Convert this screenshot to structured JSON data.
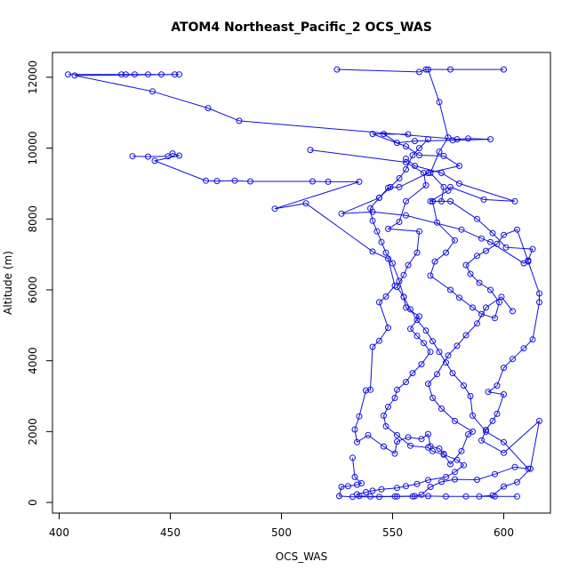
{
  "chart_data": {
    "type": "line",
    "title": "ATOM4 Northeast_Pacific_2 OCS_WAS",
    "xlabel": "OCS_WAS",
    "ylabel": "Altitude (m)",
    "xlim": [
      397,
      621
    ],
    "ylim": [
      -300,
      12700
    ],
    "xticks": [
      400,
      450,
      500,
      550,
      600
    ],
    "yticks": [
      0,
      2000,
      4000,
      6000,
      8000,
      10000,
      12000
    ],
    "grid": false,
    "legend": "none",
    "line_color": "#1010e0",
    "marker": "open-circle",
    "series": [
      {
        "points": [
          [
            404,
            12080
          ],
          [
            428,
            12080
          ],
          [
            430,
            12080
          ],
          [
            434,
            12080
          ],
          [
            440,
            12080
          ],
          [
            446,
            12080
          ],
          [
            452,
            12080
          ],
          [
            454,
            12080
          ],
          [
            407,
            12050
          ],
          [
            442,
            11600
          ],
          [
            467,
            11130
          ],
          [
            481,
            10770
          ],
          [
            579,
            10250
          ],
          [
            584,
            10270
          ],
          [
            594,
            10250
          ],
          [
            577,
            10220
          ],
          [
            560,
            10200
          ],
          [
            552,
            10150
          ],
          [
            546,
            10400
          ],
          [
            557,
            10390
          ],
          [
            541,
            10400
          ],
          [
            556,
            10050
          ],
          [
            562,
            9800
          ],
          [
            573,
            9780
          ],
          [
            580,
            9500
          ],
          [
            566,
            9300
          ],
          [
            553,
            8900
          ],
          [
            548,
            8880
          ],
          [
            544,
            8600
          ],
          [
            527,
            8150
          ],
          [
            541,
            8200
          ],
          [
            556,
            8100
          ],
          [
            581,
            7700
          ],
          [
            590,
            7450
          ],
          [
            594,
            7350
          ],
          [
            609,
            6750
          ],
          [
            611,
            6830
          ],
          [
            613,
            7150
          ],
          [
            601,
            7200
          ],
          [
            595,
            7600
          ],
          [
            588,
            8000
          ],
          [
            576,
            8500
          ],
          [
            567,
            8500
          ],
          [
            575,
            8800
          ],
          [
            576,
            8900
          ],
          [
            591,
            8550
          ],
          [
            605,
            8500
          ],
          [
            580,
            9000
          ],
          [
            572,
            9300
          ],
          [
            560,
            9500
          ],
          [
            556,
            9700
          ]
        ]
      },
      {
        "points": [
          [
            433,
            9770
          ],
          [
            440,
            9760
          ],
          [
            449,
            9770
          ],
          [
            451,
            9850
          ],
          [
            454,
            9790
          ],
          [
            443,
            9640
          ],
          [
            466,
            9080
          ],
          [
            471,
            9070
          ],
          [
            479,
            9080
          ],
          [
            486,
            9060
          ],
          [
            514,
            9060
          ],
          [
            521,
            9050
          ],
          [
            535,
            9050
          ],
          [
            497,
            8290
          ],
          [
            511,
            8440
          ],
          [
            541,
            7080
          ],
          [
            548,
            6880
          ],
          [
            551,
            6120
          ],
          [
            547,
            5810
          ],
          [
            544,
            5650
          ],
          [
            548,
            4930
          ],
          [
            544,
            4560
          ],
          [
            541,
            4390
          ],
          [
            540,
            3180
          ],
          [
            538,
            3160
          ],
          [
            535,
            2430
          ],
          [
            533,
            2060
          ],
          [
            534,
            1700
          ],
          [
            539,
            1900
          ],
          [
            546,
            1580
          ],
          [
            551,
            1380
          ],
          [
            552,
            1720
          ],
          [
            557,
            1840
          ],
          [
            563,
            1790
          ],
          [
            566,
            1930
          ],
          [
            567,
            1590
          ],
          [
            571,
            1520
          ],
          [
            573,
            1370
          ],
          [
            576,
            1080
          ],
          [
            581,
            1450
          ],
          [
            584,
            1920
          ],
          [
            586,
            2000
          ],
          [
            578,
            2300
          ],
          [
            572,
            2650
          ],
          [
            568,
            2950
          ],
          [
            566,
            3350
          ],
          [
            570,
            3620
          ],
          [
            575,
            4150
          ],
          [
            579,
            4420
          ],
          [
            583,
            4720
          ],
          [
            588,
            5050
          ],
          [
            592,
            5500
          ],
          [
            599,
            5800
          ],
          [
            604,
            5400
          ]
        ]
      },
      {
        "points": [
          [
            525,
            12220
          ],
          [
            562,
            12150
          ],
          [
            565,
            12220
          ],
          [
            576,
            12220
          ],
          [
            600,
            12220
          ],
          [
            566,
            12220
          ],
          [
            571,
            11300
          ],
          [
            575,
            10300
          ],
          [
            571,
            9900
          ],
          [
            567,
            9300
          ],
          [
            573,
            8900
          ],
          [
            572,
            8500
          ],
          [
            568,
            8500
          ],
          [
            570,
            7900
          ],
          [
            578,
            7400
          ],
          [
            574,
            7050
          ],
          [
            569,
            6800
          ],
          [
            567,
            6400
          ],
          [
            576,
            6000
          ],
          [
            580,
            5780
          ],
          [
            586,
            5500
          ],
          [
            590,
            5320
          ],
          [
            596,
            5200
          ],
          [
            598,
            5650
          ],
          [
            594,
            6000
          ],
          [
            589,
            6200
          ],
          [
            585,
            6450
          ],
          [
            583,
            6700
          ],
          [
            588,
            6960
          ],
          [
            592,
            7100
          ],
          [
            597,
            7300
          ],
          [
            600,
            7550
          ],
          [
            606,
            7700
          ],
          [
            611,
            6800
          ],
          [
            616,
            5900
          ],
          [
            616,
            5650
          ],
          [
            613,
            4600
          ],
          [
            609,
            4350
          ],
          [
            604,
            4050
          ],
          [
            600,
            3800
          ],
          [
            597,
            3300
          ],
          [
            593,
            3120
          ],
          [
            600,
            3050
          ],
          [
            597,
            2500
          ],
          [
            595,
            2300
          ],
          [
            592,
            2050
          ],
          [
            590,
            1750
          ],
          [
            600,
            1400
          ],
          [
            616,
            2300
          ],
          [
            612,
            950
          ],
          [
            606,
            570
          ],
          [
            600,
            450
          ],
          [
            595,
            200
          ],
          [
            589,
            170
          ]
        ]
      },
      {
        "points": [
          [
            513,
            9950
          ],
          [
            556,
            9600
          ],
          [
            564,
            9300
          ],
          [
            565,
            8950
          ],
          [
            556,
            8500
          ],
          [
            553,
            7920
          ],
          [
            548,
            7720
          ],
          [
            562,
            7650
          ],
          [
            561,
            7050
          ],
          [
            557,
            6700
          ],
          [
            555,
            6420
          ],
          [
            552,
            6080
          ],
          [
            555,
            5800
          ],
          [
            556,
            5500
          ],
          [
            562,
            5250
          ],
          [
            558,
            4900
          ],
          [
            561,
            4700
          ],
          [
            564,
            4500
          ],
          [
            567,
            4250
          ],
          [
            563,
            3900
          ],
          [
            559,
            3650
          ],
          [
            556,
            3400
          ],
          [
            552,
            3180
          ],
          [
            551,
            2950
          ],
          [
            548,
            2700
          ],
          [
            546,
            2450
          ],
          [
            547,
            2150
          ],
          [
            552,
            1900
          ],
          [
            558,
            1600
          ],
          [
            566,
            1550
          ],
          [
            568,
            1450
          ],
          [
            573,
            1350
          ],
          [
            579,
            1200
          ],
          [
            582,
            1050
          ],
          [
            578,
            860
          ],
          [
            574,
            720
          ],
          [
            566,
            630
          ],
          [
            561,
            520
          ],
          [
            556,
            460
          ],
          [
            552,
            410
          ],
          [
            545,
            370
          ],
          [
            541,
            330
          ],
          [
            538,
            290
          ],
          [
            534,
            230
          ],
          [
            535,
            180
          ],
          [
            540,
            170
          ],
          [
            552,
            170
          ],
          [
            559,
            170
          ],
          [
            566,
            180
          ],
          [
            574,
            170
          ],
          [
            583,
            170
          ],
          [
            596,
            170
          ],
          [
            606,
            170
          ]
        ]
      },
      {
        "points": [
          [
            532,
            1260
          ],
          [
            533,
            720
          ],
          [
            536,
            540
          ],
          [
            534,
            500
          ],
          [
            530,
            460
          ],
          [
            527,
            440
          ],
          [
            526,
            180
          ],
          [
            532,
            160
          ],
          [
            544,
            160
          ],
          [
            551,
            170
          ],
          [
            560,
            180
          ],
          [
            563,
            220
          ],
          [
            567,
            440
          ],
          [
            572,
            580
          ],
          [
            578,
            650
          ],
          [
            588,
            640
          ],
          [
            596,
            800
          ],
          [
            605,
            1000
          ],
          [
            611,
            950
          ],
          [
            600,
            1700
          ],
          [
            592,
            2000
          ],
          [
            586,
            2450
          ],
          [
            585,
            3000
          ],
          [
            582,
            3300
          ],
          [
            577,
            3650
          ],
          [
            574,
            3950
          ],
          [
            571,
            4250
          ],
          [
            568,
            4550
          ],
          [
            565,
            4850
          ],
          [
            561,
            5150
          ],
          [
            558,
            5450
          ],
          [
            555,
            5800
          ],
          [
            553,
            6250
          ],
          [
            550,
            6750
          ],
          [
            547,
            7050
          ],
          [
            545,
            7350
          ],
          [
            543,
            7650
          ],
          [
            541,
            7950
          ],
          [
            540,
            8300
          ],
          [
            544,
            8600
          ],
          [
            549,
            8900
          ],
          [
            553,
            9150
          ],
          [
            556,
            9400
          ],
          [
            559,
            9800
          ],
          [
            562,
            10000
          ],
          [
            566,
            10250
          ]
        ]
      }
    ]
  }
}
